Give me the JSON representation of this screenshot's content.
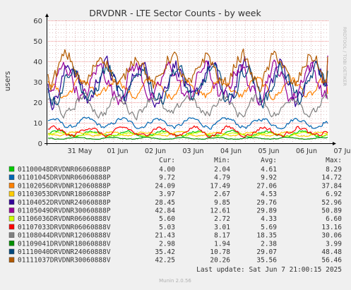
{
  "footer": {
    "last_update": "Last update: Sat Jun  7 21:00:15 2025",
    "munin_version": "Munin 2.0.56"
  },
  "colors": {
    "background": "#f0f0f0",
    "plot_background": "#ffffff",
    "major_grid": "#f09090",
    "minor_grid": "#e0c0c0",
    "axis": "#000000"
  },
  "chart_data": {
    "type": "line",
    "title": "DRVDNR - LTE Sector Counts - by week",
    "ylabel": "users",
    "watermark": "RRDTOOL / TOBI OETIKER",
    "ylim": [
      0,
      60
    ],
    "yticks": [
      0,
      10,
      20,
      30,
      40,
      50,
      60
    ],
    "grid": true,
    "x_tick_labels": [
      "31 May",
      "01 Jun",
      "02 Jun",
      "03 Jun",
      "04 Jun",
      "05 Jun",
      "06 Jun",
      "07 Jun"
    ],
    "legend_columns": [
      "Cur:",
      "Min:",
      "Avg:",
      "Max:"
    ],
    "series": [
      {
        "name": "01100048DRVDNR06060888P",
        "color": "#00cc00",
        "cur": "4.00",
        "min": "2.04",
        "avg": "4.61",
        "max": "8.29",
        "avg_value": 4.61,
        "min_value": 2.04,
        "max_value": 8.29,
        "cur_value": 4.0
      },
      {
        "name": "01101045DRVDNR06060888P",
        "color": "#0066b3",
        "cur": "9.72",
        "min": "4.79",
        "avg": "9.92",
        "max": "14.72",
        "avg_value": 9.92,
        "min_value": 4.79,
        "max_value": 14.72,
        "cur_value": 9.72
      },
      {
        "name": "01102056DRVDNR12060888P",
        "color": "#ff8000",
        "cur": "24.09",
        "min": "17.49",
        "avg": "27.06",
        "max": "37.84",
        "avg_value": 27.06,
        "min_value": 17.49,
        "max_value": 37.84,
        "cur_value": 24.09
      },
      {
        "name": "01103053DRVDNR18060888P",
        "color": "#ffcc00",
        "cur": "3.97",
        "min": "2.67",
        "avg": "4.53",
        "max": "6.92",
        "avg_value": 4.53,
        "min_value": 2.67,
        "max_value": 6.92,
        "cur_value": 3.97
      },
      {
        "name": "01104052DRVDNR24060888P",
        "color": "#330099",
        "cur": "28.45",
        "min": "9.85",
        "avg": "29.76",
        "max": "52.96",
        "avg_value": 29.76,
        "min_value": 9.85,
        "max_value": 52.96,
        "cur_value": 28.45
      },
      {
        "name": "01105049DRVDNR30060888P",
        "color": "#990099",
        "cur": "42.84",
        "min": "12.61",
        "avg": "29.89",
        "max": "50.89",
        "avg_value": 29.89,
        "min_value": 12.61,
        "max_value": 50.89,
        "cur_value": 42.84
      },
      {
        "name": "01106036DRVDNR06060888V",
        "color": "#ccff00",
        "cur": "5.60",
        "min": "2.72",
        "avg": "4.33",
        "max": "6.60",
        "avg_value": 4.33,
        "min_value": 2.72,
        "max_value": 6.6,
        "cur_value": 5.6
      },
      {
        "name": "01107033DRVDNR06060888V",
        "color": "#ff0000",
        "cur": "5.03",
        "min": "3.01",
        "avg": "5.69",
        "max": "13.16",
        "avg_value": 5.69,
        "min_value": 3.01,
        "max_value": 13.16,
        "cur_value": 5.03
      },
      {
        "name": "01108044DRVDNR12060888V",
        "color": "#808080",
        "cur": "21.43",
        "min": "8.17",
        "avg": "18.35",
        "max": "30.06",
        "avg_value": 18.35,
        "min_value": 8.17,
        "max_value": 30.06,
        "cur_value": 21.43
      },
      {
        "name": "01109041DRVDNR18060888V",
        "color": "#008f00",
        "cur": "2.98",
        "min": "1.94",
        "avg": "2.38",
        "max": "3.99",
        "avg_value": 2.38,
        "min_value": 1.94,
        "max_value": 3.99,
        "cur_value": 2.98
      },
      {
        "name": "01110040DRVDNR24060888V",
        "color": "#00487d",
        "cur": "35.42",
        "min": "10.78",
        "avg": "29.07",
        "max": "48.48",
        "avg_value": 29.07,
        "min_value": 10.78,
        "max_value": 48.48,
        "cur_value": 35.42
      },
      {
        "name": "01111037DRVDNR30060888V",
        "color": "#b35a00",
        "cur": "42.25",
        "min": "20.26",
        "avg": "35.56",
        "max": "56.46",
        "avg_value": 35.56,
        "min_value": 20.26,
        "max_value": 56.46,
        "cur_value": 42.25
      }
    ]
  }
}
